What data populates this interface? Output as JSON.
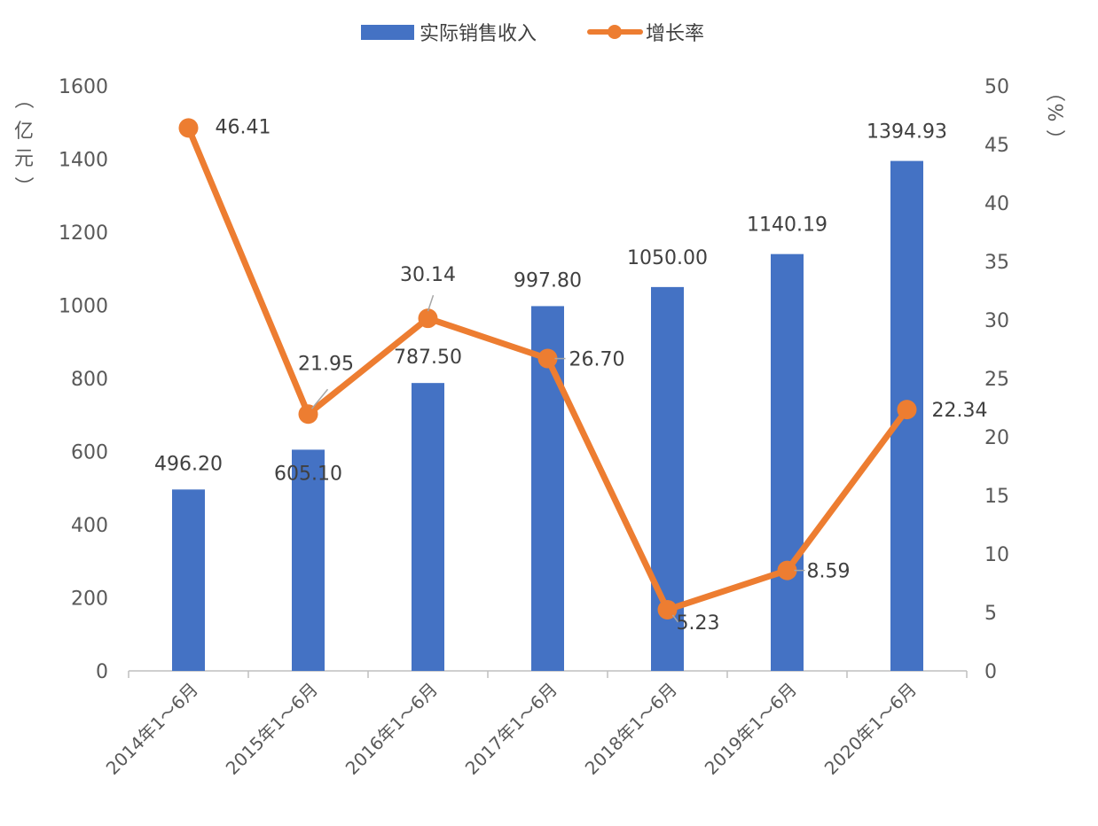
{
  "chart_data": {
    "type": "bar+line",
    "categories": [
      "2014年1～6月",
      "2015年1～6月",
      "2016年1～6月",
      "2017年1～6月",
      "2018年1～6月",
      "2019年1～6月",
      "2020年1～6月"
    ],
    "series": [
      {
        "name": "实际销售收入",
        "type": "bar",
        "axis": "left",
        "color": "#4472C4",
        "values": [
          496.2,
          605.1,
          787.5,
          997.8,
          1050.0,
          1140.19,
          1394.93
        ],
        "labels": [
          "496.20",
          "605.10",
          "787.50",
          "997.80",
          "1050.00",
          "1140.19",
          "1394.93"
        ]
      },
      {
        "name": "增长率",
        "type": "line",
        "axis": "right",
        "color": "#ED7D31",
        "values": [
          46.41,
          21.95,
          30.14,
          26.7,
          5.23,
          8.59,
          22.34
        ],
        "labels": [
          "46.41",
          "21.95",
          "30.14",
          "26.70",
          "5.23",
          "8.59",
          "22.34"
        ]
      }
    ],
    "y_left": {
      "unit_chars": [
        "（",
        "亿",
        "元",
        "）"
      ],
      "ylim": [
        0,
        1600
      ],
      "ticks": [
        "0",
        "200",
        "400",
        "600",
        "800",
        "1000",
        "1200",
        "1400",
        "1600"
      ]
    },
    "y_right": {
      "unit_chars": [
        "（",
        "%",
        "）"
      ],
      "ylim": [
        0,
        50
      ],
      "ticks": [
        "0",
        "5",
        "10",
        "15",
        "20",
        "25",
        "30",
        "35",
        "40",
        "45",
        "50"
      ]
    },
    "legend_position": "top-center",
    "grid": false
  }
}
